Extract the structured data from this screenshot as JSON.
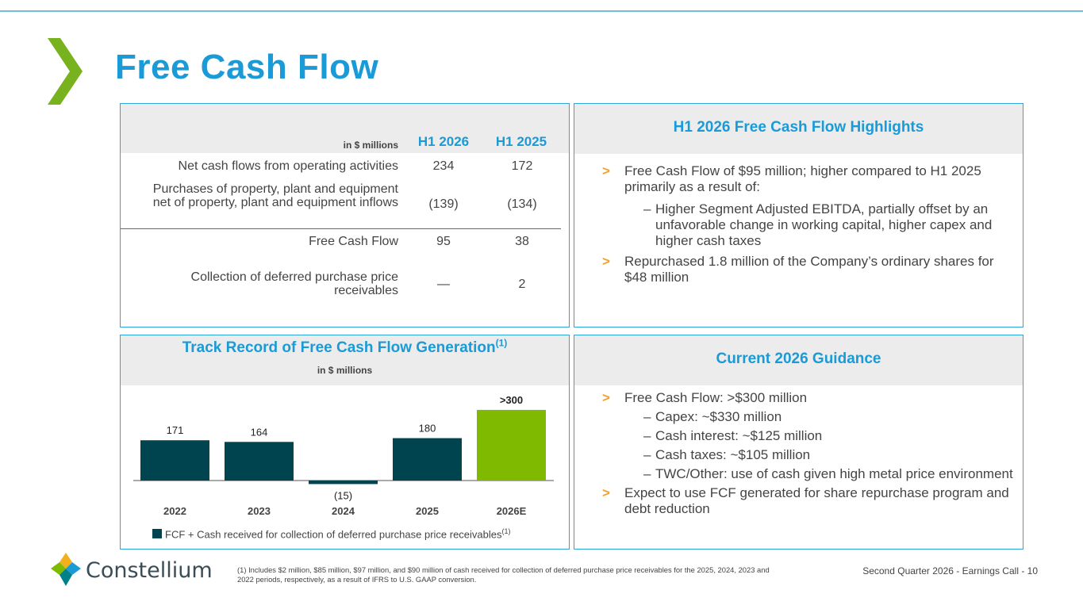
{
  "page": {
    "title": "Free Cash Flow",
    "footer_ref": "Second Quarter 2026 - Earnings Call - 10",
    "footnote": "(1) Includes $2 million, $85 million, $97 million, and $90 million of cash received for collection of deferred purchase price receivables for the 2025, 2024, 2023 and 2022 periods, respectively, as a result of IFRS to U.S. GAAP conversion.",
    "brand": "Constellium"
  },
  "colors": {
    "accent_blue": "#1a9ad6",
    "chevron_green": "#78b21e",
    "bar_dark": "#00444f",
    "bar_estimate": "#7fba00",
    "bullet_marker": "#f0a030"
  },
  "table": {
    "units": "in $ millions",
    "col1": "H1 2026",
    "col2": "H1 2025",
    "rows": [
      {
        "label": "Net cash flows from operating activities",
        "v1": "234",
        "v2": "172"
      },
      {
        "label": "Purchases of property, plant and equipment net of property, plant and equipment inflows",
        "v1": "(139)",
        "v2": "(134)"
      },
      {
        "label": "Free Cash Flow",
        "v1": "95",
        "v2": "38"
      },
      {
        "label": "Collection of deferred purchase price receivables",
        "v1": "—",
        "v2": "2"
      }
    ]
  },
  "highlights": {
    "title": "H1 2026 Free Cash Flow Highlights",
    "marker": ">",
    "dash": "–",
    "b1": "Free Cash Flow of $95 million; higher compared to H1 2025 primarily as a result of:",
    "b1_sub": "Higher Segment Adjusted EBITDA, partially offset by an unfavorable change in working capital, higher capex and higher cash taxes",
    "b2": "Repurchased 1.8 million of the Company’s ordinary shares for $48 million"
  },
  "chart_panel": {
    "title": "Track Record of Free Cash Flow Generation",
    "title_sup": "(1)",
    "subtitle": "in $ millions",
    "legend": "FCF + Cash received for collection of deferred purchase price receivables",
    "legend_sup": "(1)"
  },
  "chart_data": {
    "type": "bar",
    "title": "Track Record of Free Cash Flow Generation",
    "ylabel": "in $ millions",
    "categories": [
      "2022",
      "2023",
      "2024",
      "2025",
      "2026E"
    ],
    "values": [
      171,
      164,
      -15,
      180,
      300
    ],
    "labels": [
      "171",
      "164",
      "(15)",
      "180",
      ">300"
    ],
    "colors": [
      "#00444f",
      "#00444f",
      "#00444f",
      "#00444f",
      "#7fba00"
    ],
    "series": [
      {
        "name": "FCF + Cash received for collection of deferred purchase price receivables",
        "values": [
          171,
          164,
          -15,
          180,
          300
        ]
      }
    ]
  },
  "guidance": {
    "title": "Current 2026 Guidance",
    "b1": "Free Cash Flow: >$300 million",
    "subs": [
      "Capex: ~$330 million",
      "Cash interest: ~$125 million",
      "Cash taxes: ~$105 million",
      "TWC/Other: use of cash given high metal price environment"
    ],
    "b2": "Expect to use FCF generated for share repurchase program and debt reduction"
  }
}
